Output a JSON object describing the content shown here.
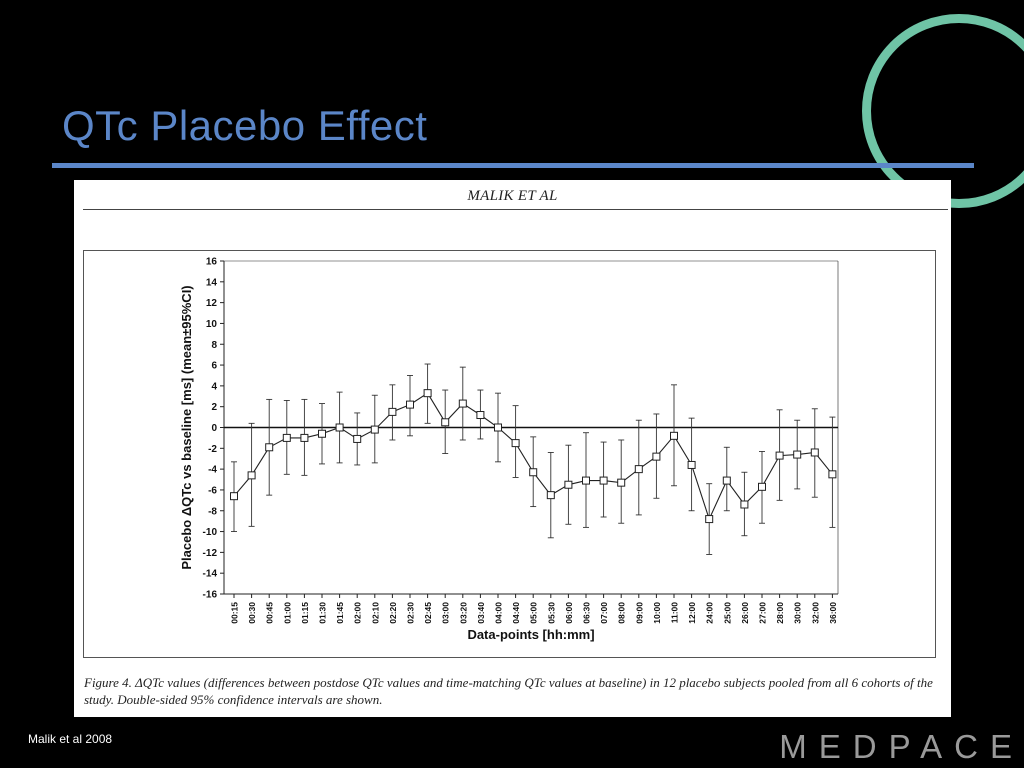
{
  "slide": {
    "title": "QTc Placebo Effect",
    "source_note": "Malik et al 2008",
    "logo_text": "MEDPACE"
  },
  "colors": {
    "background": "#000000",
    "title_blue": "#5b86c8",
    "ring_green": "#6fc4a6"
  },
  "figure": {
    "running_head": "MALIK ET AL",
    "caption": "Figure 4.   ΔQTc values (differences between postdose QTc values and time-matching QTc values at baseline) in 12 placebo subjects pooled from all 6 cohorts of the study. Double-sided 95% confidence intervals are shown."
  },
  "chart_data": {
    "type": "line",
    "xlabel": "Data-points [hh:mm]",
    "ylabel": "Placebo ΔQTc vs baseline [ms] (mean±95%CI)",
    "ylim": [
      -16,
      16
    ],
    "yticks": [
      16,
      14,
      12,
      10,
      8,
      6,
      4,
      2,
      0,
      -2,
      -4,
      -6,
      -8,
      -10,
      -12,
      -14,
      -16
    ],
    "categories": [
      "00:15",
      "00:30",
      "00:45",
      "01:00",
      "01:15",
      "01:30",
      "01:45",
      "02:00",
      "02:10",
      "02:20",
      "02:30",
      "02:45",
      "03:00",
      "03:20",
      "03:40",
      "04:00",
      "04:40",
      "05:00",
      "05:30",
      "06:00",
      "06:30",
      "07:00",
      "08:00",
      "09:00",
      "10:00",
      "11:00",
      "12:00",
      "24:00",
      "25:00",
      "26:00",
      "27:00",
      "28:00",
      "30:00",
      "32:00",
      "36:00"
    ],
    "series": [
      {
        "values": [
          -6.6,
          -4.6,
          -1.9,
          -1.0,
          -1.0,
          -0.6,
          0.0,
          -1.1,
          -0.2,
          1.5,
          2.2,
          3.3,
          0.5,
          2.3,
          1.2,
          0.0,
          -1.5,
          -4.3,
          -6.5,
          -5.5,
          -5.1,
          -5.1,
          -5.3,
          -4.0,
          -2.8,
          -0.8,
          -3.6,
          -8.8,
          -5.1,
          -7.4,
          -5.7,
          -2.7,
          -2.6,
          -2.4,
          -4.5
        ],
        "ci_low": [
          -10.0,
          -9.5,
          -6.5,
          -4.5,
          -4.6,
          -3.5,
          -3.4,
          -3.6,
          -3.4,
          -1.2,
          -0.8,
          0.4,
          -2.5,
          -1.2,
          -1.1,
          -3.3,
          -4.8,
          -7.6,
          -10.6,
          -9.3,
          -9.6,
          -8.6,
          -9.2,
          -8.4,
          -6.8,
          -5.6,
          -8.0,
          -12.2,
          -8.0,
          -10.4,
          -9.2,
          -7.0,
          -5.9,
          -6.7,
          -9.6
        ],
        "ci_high": [
          -3.3,
          0.4,
          2.7,
          2.6,
          2.7,
          2.3,
          3.4,
          1.4,
          3.1,
          4.1,
          5.0,
          6.1,
          3.6,
          5.8,
          3.6,
          3.3,
          2.1,
          -0.9,
          -2.4,
          -1.7,
          -0.5,
          -1.4,
          -1.2,
          0.7,
          1.3,
          4.1,
          0.9,
          -5.4,
          -1.9,
          -4.3,
          -2.3,
          1.7,
          0.7,
          1.8,
          1.0
        ]
      }
    ],
    "reference_line": 0,
    "grid": false,
    "marker": "open-square"
  }
}
